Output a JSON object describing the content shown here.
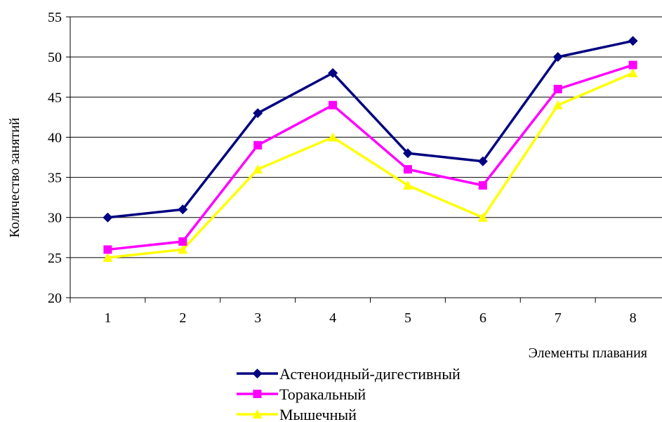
{
  "chart_data": {
    "type": "line",
    "title": "",
    "xlabel": "Элементы плавания",
    "ylabel": "Количество занятий",
    "categories": [
      "1",
      "2",
      "3",
      "4",
      "5",
      "6",
      "7",
      "8"
    ],
    "ylim": [
      20,
      55
    ],
    "yticks": [
      "20",
      "25",
      "30",
      "35",
      "40",
      "45",
      "50",
      "55"
    ],
    "grid": "horizontal",
    "legend_position": "bottom",
    "series": [
      {
        "name": "Астеноидный-дигестивный",
        "values": [
          30,
          31,
          43,
          48,
          38,
          37,
          50,
          52
        ],
        "color": "#000080",
        "marker": "diamond"
      },
      {
        "name": "Торакальный",
        "values": [
          26,
          27,
          39,
          44,
          36,
          34,
          46,
          49
        ],
        "color": "#ff00ff",
        "marker": "square"
      },
      {
        "name": "Мышечный",
        "values": [
          25,
          26,
          36,
          40,
          34,
          30,
          44,
          48
        ],
        "color": "#ffff00",
        "marker": "triangle"
      }
    ]
  }
}
